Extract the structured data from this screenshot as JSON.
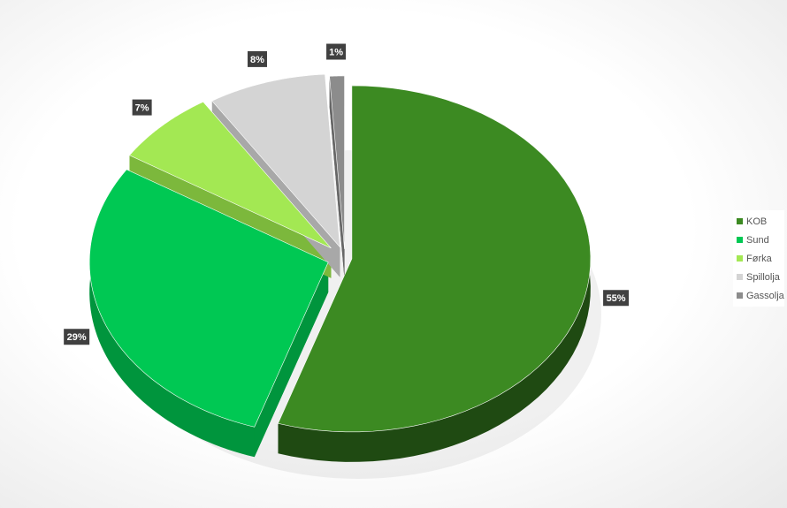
{
  "chart_data": {
    "type": "pie",
    "style": "3d-exploded",
    "categories": [
      "KOB",
      "Sund",
      "Førka",
      "Spillolja",
      "Gassolja"
    ],
    "values": [
      55,
      29,
      7,
      8,
      1
    ],
    "labels": [
      "55%",
      "29%",
      "7%",
      "8%",
      "1%"
    ],
    "colors": [
      "#3c8a22",
      "#00c853",
      "#a3e853",
      "#d4d4d4",
      "#8c8c8c"
    ],
    "side_colors": [
      "#1f4a12",
      "#00953d",
      "#7cb83c",
      "#a8a8a8",
      "#666666"
    ],
    "legend_position": "right",
    "start_angle": "top, clockwise"
  }
}
